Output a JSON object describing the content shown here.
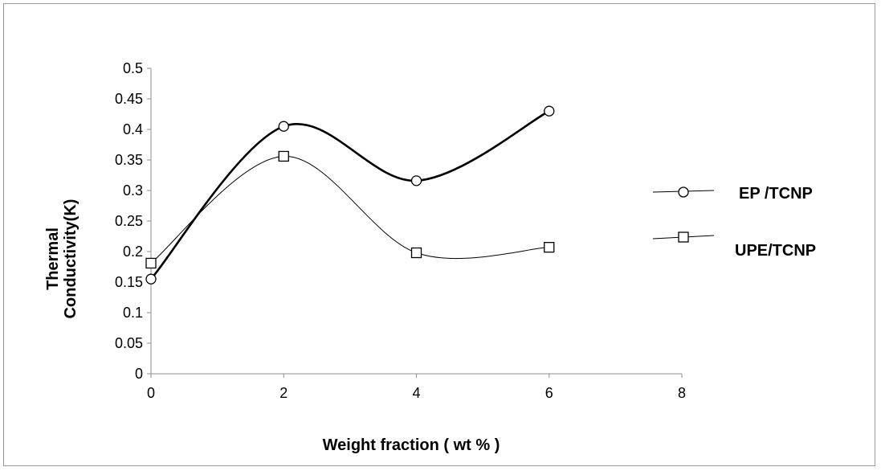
{
  "chart_data": {
    "type": "scatter",
    "xlabel": "Weight fraction ( wt % )",
    "ylabel_lines": [
      "Thermal",
      "Conductivity(K)"
    ],
    "xlim": [
      0,
      8
    ],
    "ylim": [
      0,
      0.5
    ],
    "x_ticks": [
      "0",
      "2",
      "4",
      "6",
      "8"
    ],
    "y_ticks": [
      "0",
      "0.05",
      "0.1",
      "0.15",
      "0.2",
      "0.25",
      "0.3",
      "0.35",
      "0.4",
      "0.45",
      "0.5"
    ],
    "grid": false,
    "legend_position": "right",
    "series": [
      {
        "name": "EP /TCNP",
        "marker": "circle",
        "line": "smooth-thick",
        "color": "#000000",
        "x": [
          0,
          2,
          4,
          6
        ],
        "y": [
          0.155,
          0.405,
          0.316,
          0.43
        ]
      },
      {
        "name": "UPE/TCNP",
        "marker": "square",
        "line": "smooth-thin",
        "color": "#000000",
        "x": [
          0,
          2,
          4,
          6
        ],
        "y": [
          0.181,
          0.356,
          0.198,
          0.207
        ]
      }
    ]
  }
}
